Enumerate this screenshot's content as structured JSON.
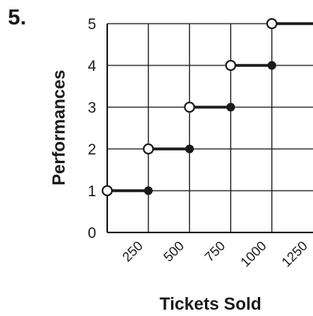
{
  "problem": {
    "number": "5."
  },
  "chart_data": {
    "type": "line",
    "subtype": "step-function",
    "title": "",
    "xlabel": "Tickets Sold",
    "ylabel": "Performances",
    "x_ticks": [
      250,
      500,
      750,
      1000,
      1250
    ],
    "x_tick_labels": [
      "250",
      "500",
      "750",
      "1000",
      "1250"
    ],
    "y_ticks": [
      0,
      1,
      2,
      3,
      4,
      5
    ],
    "y_tick_labels": [
      "0",
      "1",
      "2",
      "3",
      "4",
      "5"
    ],
    "xlim": [
      0,
      1250
    ],
    "ylim": [
      0,
      5
    ],
    "grid": true,
    "segments": [
      {
        "x_start": 0,
        "x_end": 250,
        "y": 1,
        "start_open": true,
        "end_closed": true
      },
      {
        "x_start": 250,
        "x_end": 500,
        "y": 2,
        "start_open": true,
        "end_closed": true
      },
      {
        "x_start": 500,
        "x_end": 750,
        "y": 3,
        "start_open": true,
        "end_closed": true
      },
      {
        "x_start": 750,
        "x_end": 1000,
        "y": 4,
        "start_open": true,
        "end_closed": true
      },
      {
        "x_start": 1000,
        "x_end": 1250,
        "y": 5,
        "start_open": true,
        "end_closed": false
      }
    ],
    "colors": {
      "line": "#1a1a1a",
      "grid": "#1a1a1a",
      "open_fill": "#ffffff"
    }
  }
}
